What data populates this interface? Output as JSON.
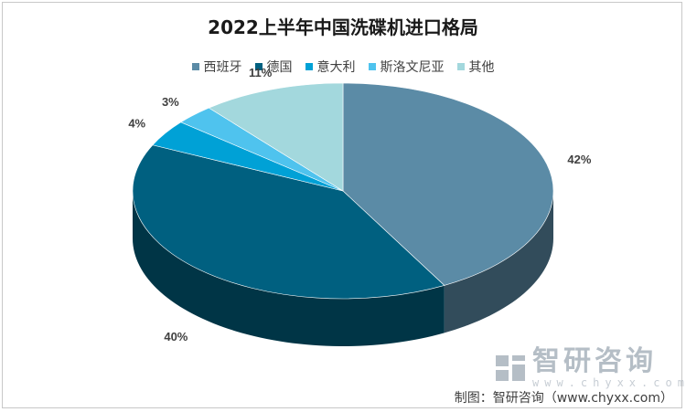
{
  "chart_data": {
    "type": "pie",
    "title": "2022上半年中国洗碟机进口格局",
    "categories": [
      "西班牙",
      "德国",
      "意大利",
      "斯洛文尼亚",
      "其他"
    ],
    "values": [
      42,
      40,
      4,
      3,
      11
    ],
    "value_labels": [
      "42%",
      "40%",
      "4%",
      "3%",
      "11%"
    ],
    "colors": [
      "#5b8ba6",
      "#006080",
      "#00a1d6",
      "#4fc3ee",
      "#a3d8dd"
    ],
    "legend_position": "top"
  },
  "watermark": {
    "name": "智研咨询",
    "url": "www.chyxx.com"
  },
  "source_note": "制图：智研咨询（www.chyxx.com）"
}
